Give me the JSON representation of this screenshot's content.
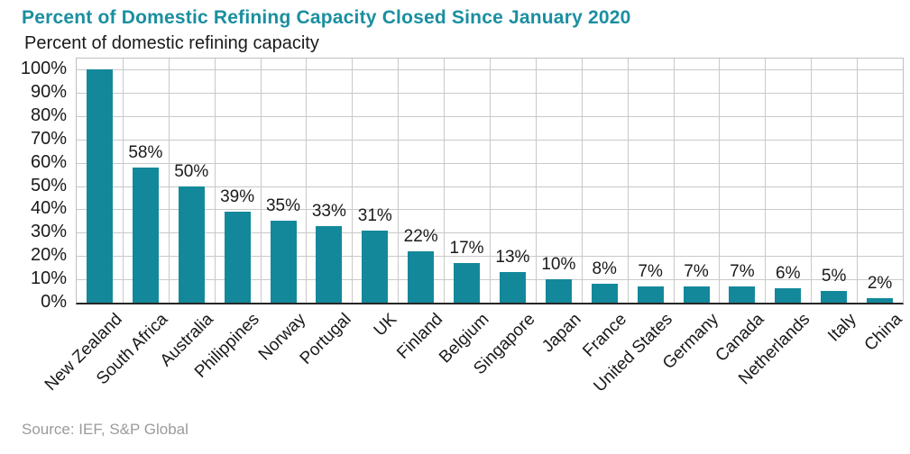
{
  "chart_data": {
    "type": "bar",
    "title": "Percent of Domestic Refining Capacity Closed Since January 2020",
    "subtitle": "Percent of domestic refining capacity",
    "categories": [
      "New Zealand",
      "South Africa",
      "Australia",
      "Philippines",
      "Norway",
      "Portugal",
      "UK",
      "Finland",
      "Belgium",
      "Singapore",
      "Japan",
      "France",
      "United States",
      "Germany",
      "Canada",
      "Netherlands",
      "Italy",
      "China"
    ],
    "values": [
      100,
      58,
      50,
      39,
      35,
      33,
      31,
      22,
      17,
      13,
      10,
      8,
      7,
      7,
      7,
      6,
      5,
      2
    ],
    "data_labels": [
      null,
      "58%",
      "50%",
      "39%",
      "35%",
      "33%",
      "31%",
      "22%",
      "17%",
      "13%",
      "10%",
      "8%",
      "7%",
      "7%",
      "7%",
      "6%",
      "5%",
      "2%"
    ],
    "xlabel": "",
    "ylabel": "",
    "ylim": [
      0,
      100
    ],
    "ytick_step": 10,
    "ytick_labels": [
      "0%",
      "10%",
      "20%",
      "30%",
      "40%",
      "50%",
      "60%",
      "70%",
      "80%",
      "90%",
      "100%"
    ],
    "grid": true,
    "legend": "none",
    "x_tick_rotation_deg": 45,
    "colors": {
      "bar": "#14889B",
      "title": "#1A8FA0",
      "grid": "#C9C9C9",
      "plot_border": "#BFBFBF",
      "axis": "#262626",
      "text": "#1A1A1A",
      "source_text": "#9B9B9B"
    },
    "source": "Source: IEF, S&P Global"
  }
}
